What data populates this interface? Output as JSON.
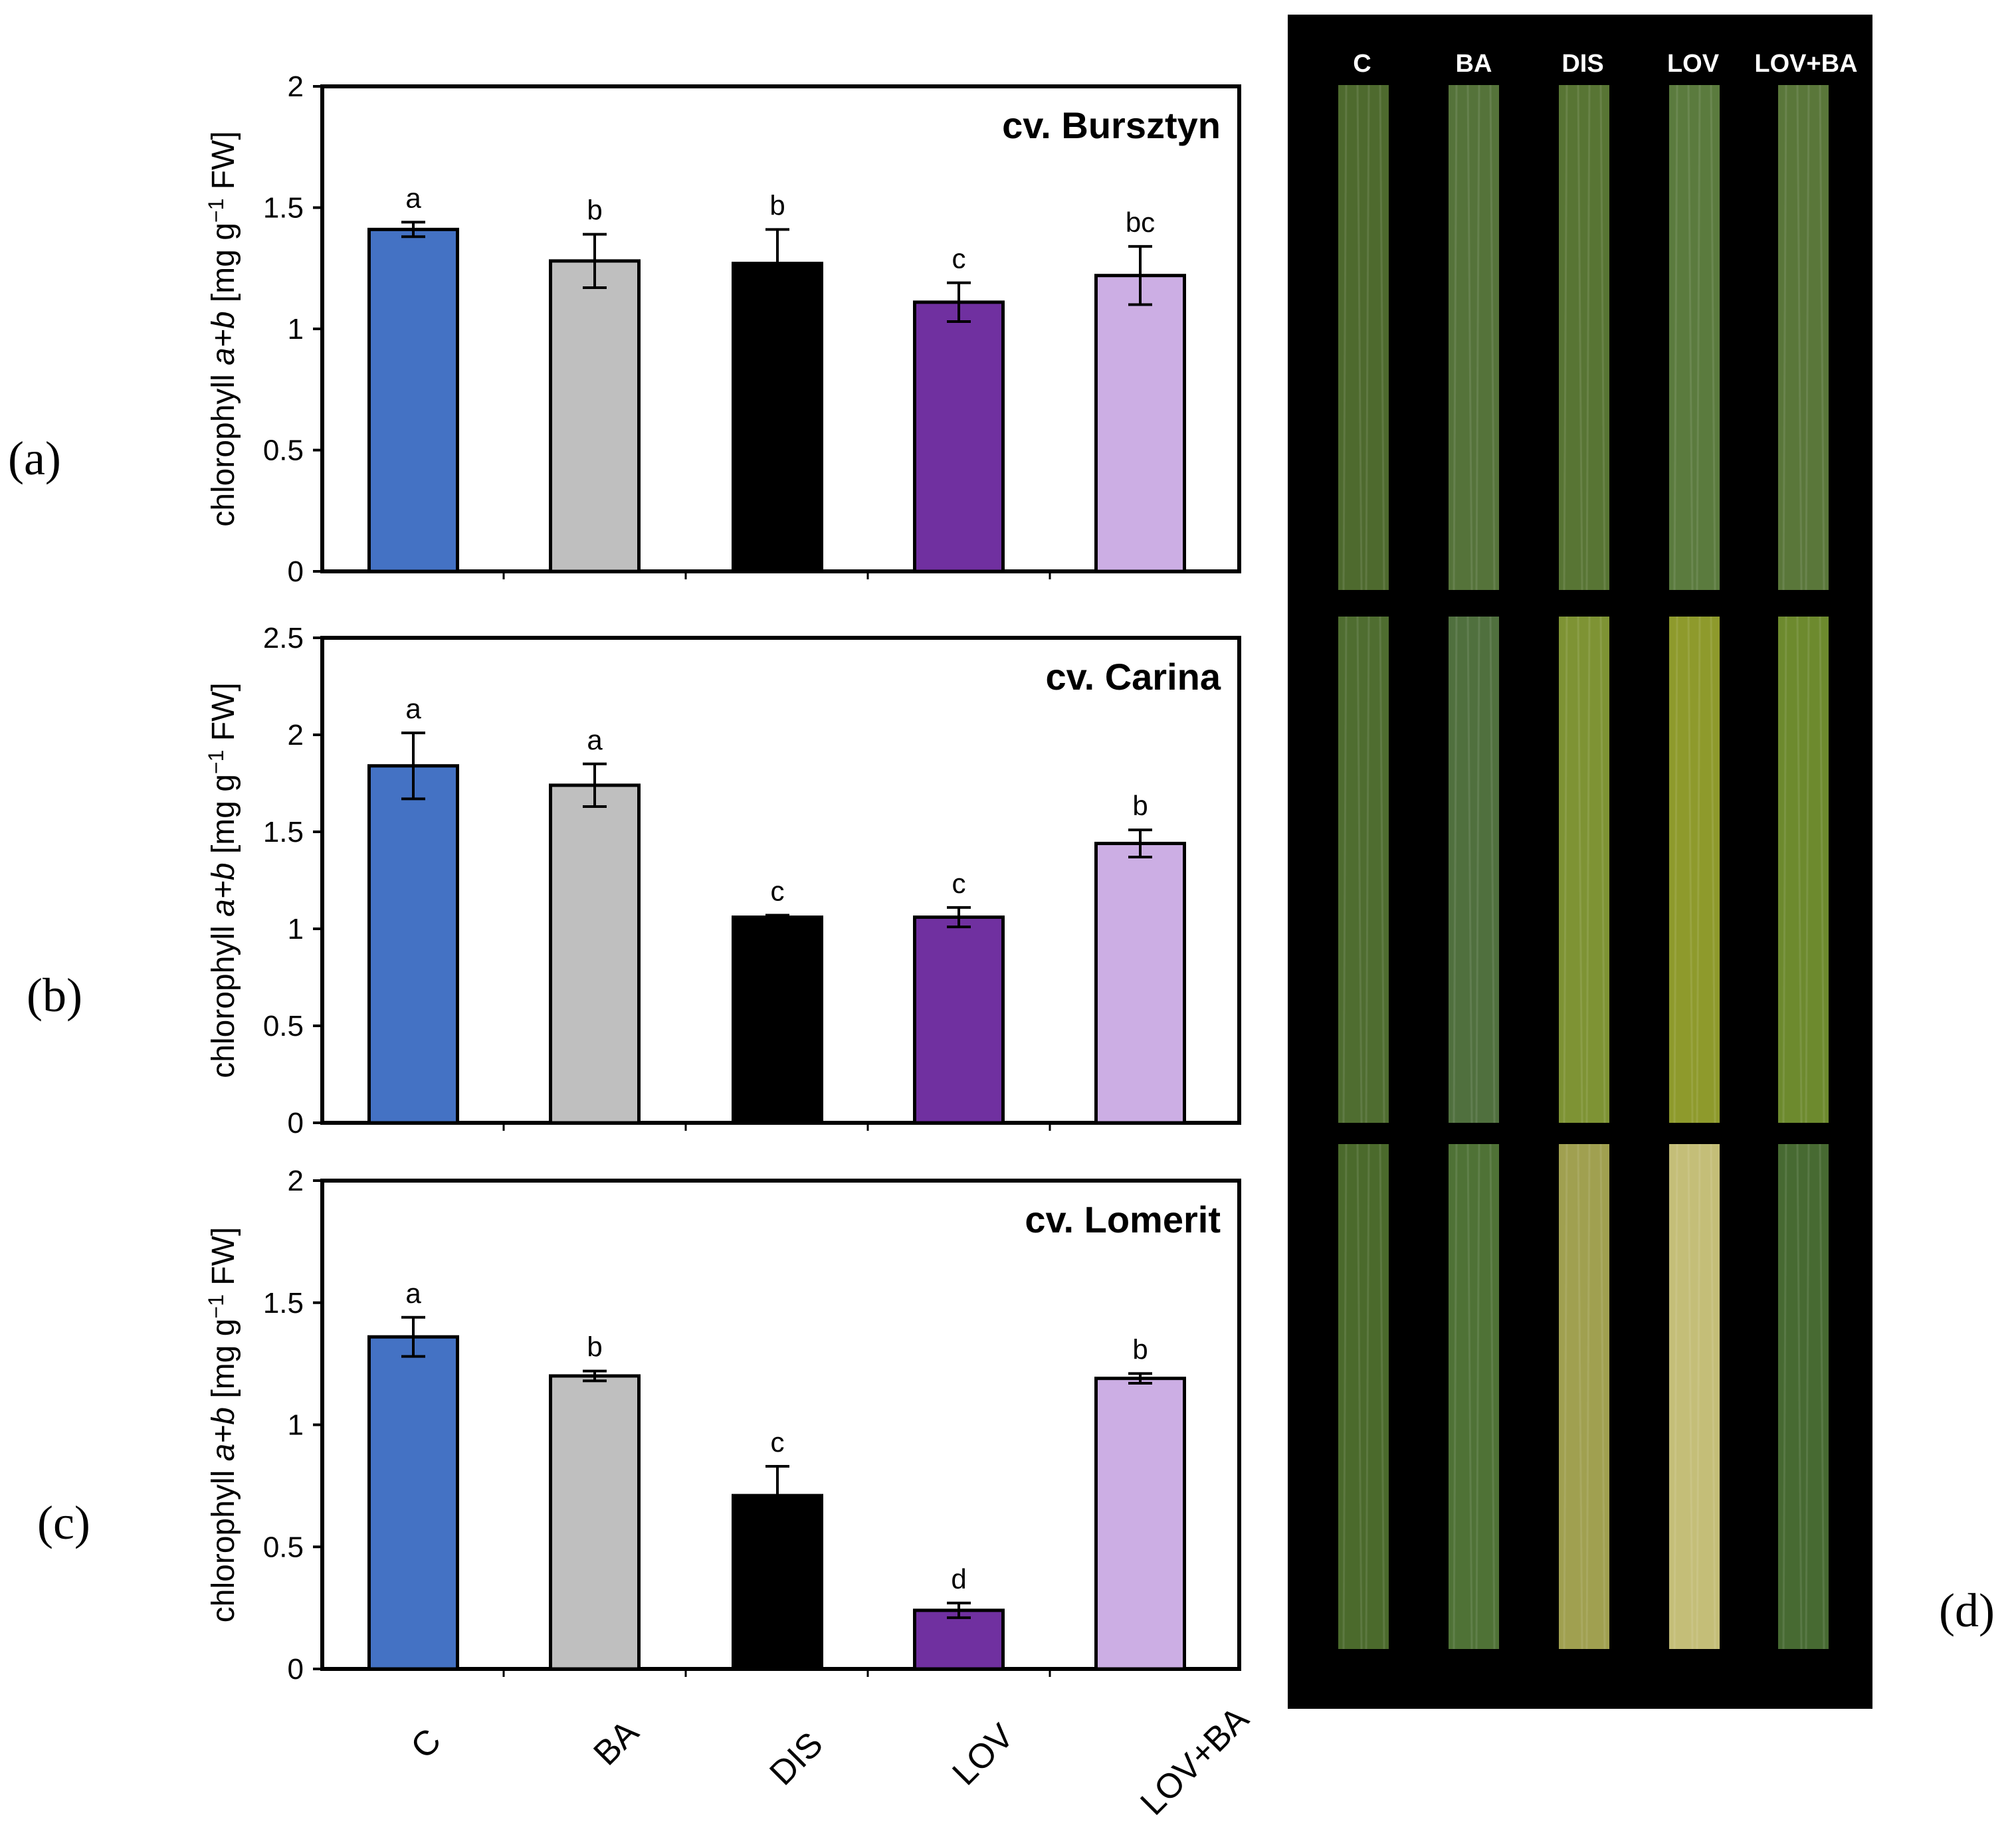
{
  "figure": {
    "panel_letters": [
      "(a)",
      "(b)",
      "(c)",
      "(d)"
    ],
    "photo_headers": [
      "C",
      "BA",
      "DIS",
      "LOV",
      "LOV+BA"
    ]
  },
  "chart_data": [
    {
      "type": "bar",
      "title": "cv. Bursztyn",
      "ylabel_parts": [
        "chlorophyll ",
        "a+b",
        " [mg g",
        "−1",
        " FW]"
      ],
      "categories": [
        "C",
        "BA",
        "DIS",
        "LOV",
        "LOV+BA"
      ],
      "values": [
        1.41,
        1.28,
        1.27,
        1.11,
        1.22
      ],
      "errors": [
        0.03,
        0.11,
        0.14,
        0.08,
        0.12
      ],
      "letters": [
        "a",
        "b",
        "b",
        "c",
        "bc"
      ],
      "ylim": [
        0,
        2
      ],
      "yticks": [
        0,
        0.5,
        1,
        1.5,
        2
      ],
      "ytick_labels": [
        "0",
        "0.5",
        "1",
        "1.5",
        "2"
      ],
      "colors": [
        "#4472C4",
        "#BFBFBF",
        "#000000",
        "#7030A0",
        "#CCAEE4"
      ]
    },
    {
      "type": "bar",
      "title": "cv. Carina",
      "ylabel_parts": [
        "chlorophyll ",
        "a+b",
        " [mg g",
        "−1",
        " FW]"
      ],
      "categories": [
        "C",
        "BA",
        "DIS",
        "LOV",
        "LOV+BA"
      ],
      "values": [
        1.84,
        1.74,
        1.06,
        1.06,
        1.44
      ],
      "errors": [
        0.17,
        0.11,
        0.01,
        0.05,
        0.07
      ],
      "letters": [
        "a",
        "a",
        "c",
        "c",
        "b"
      ],
      "ylim": [
        0,
        2.5
      ],
      "yticks": [
        0,
        0.5,
        1,
        1.5,
        2,
        2.5
      ],
      "ytick_labels": [
        "0",
        "0.5",
        "1",
        "1.5",
        "2",
        "2.5"
      ],
      "colors": [
        "#4472C4",
        "#BFBFBF",
        "#000000",
        "#7030A0",
        "#CCAEE4"
      ]
    },
    {
      "type": "bar",
      "title": "cv. Lomerit",
      "ylabel_parts": [
        "chlorophyll ",
        "a+b",
        " [mg g",
        "−1",
        " FW]"
      ],
      "categories": [
        "C",
        "BA",
        "DIS",
        "LOV",
        "LOV+BA"
      ],
      "values": [
        1.36,
        1.2,
        0.71,
        0.24,
        1.19
      ],
      "errors": [
        0.08,
        0.02,
        0.12,
        0.03,
        0.02
      ],
      "letters": [
        "a",
        "b",
        "c",
        "d",
        "b"
      ],
      "ylim": [
        0,
        2
      ],
      "yticks": [
        0,
        0.5,
        1,
        1.5,
        2
      ],
      "ytick_labels": [
        "0",
        "0.5",
        "1",
        "1.5",
        "2"
      ],
      "colors": [
        "#4472C4",
        "#BFBFBF",
        "#000000",
        "#7030A0",
        "#CCAEE4"
      ]
    }
  ],
  "leaf_photo_colors": {
    "background": "#000000",
    "rows": [
      [
        "#4E6A2E",
        "#55733A",
        "#587534",
        "#5B7B3E",
        "#5A773A"
      ],
      [
        "#4F6D30",
        "#50703E",
        "#7E9334",
        "#8E9A2C",
        "#6D8A2E"
      ],
      [
        "#4B6A2C",
        "#4F7236",
        "#A0A050",
        "#C4BE78",
        "#476A32"
      ]
    ]
  }
}
